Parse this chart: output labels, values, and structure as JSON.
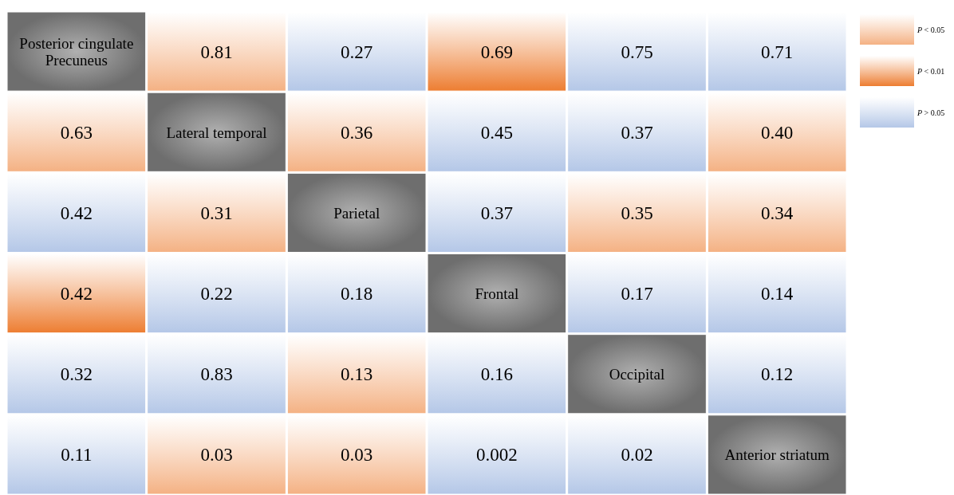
{
  "chart_data": {
    "type": "heatmap",
    "categories": [
      null,
      null,
      null,
      null,
      null,
      null
    ],
    "y_categories": [
      null,
      null,
      null,
      null,
      null,
      null
    ],
    "cells": [
      [
        null,
        0.81,
        0.27,
        0.69,
        0.75,
        0.71
      ],
      [
        0.63,
        null,
        0.36,
        0.45,
        0.37,
        0.4
      ],
      [
        0.42,
        0.31,
        null,
        0.37,
        0.35,
        0.34
      ],
      [
        0.42,
        0.22,
        0.18,
        null,
        0.17,
        0.14
      ],
      [
        0.32,
        0.83,
        0.13,
        0.16,
        null,
        0.12
      ],
      [
        0.11,
        0.03,
        0.03,
        0.002,
        0.02,
        null
      ]
    ],
    "cell_labels": [
      [
        "Posterior cingulate Precuneus",
        "0.81",
        "0.27",
        "0.69",
        "0.75",
        "0.71"
      ],
      [
        "0.63",
        "Lateral temporal",
        "0.36",
        "0.45",
        "0.37",
        "0.40"
      ],
      [
        "0.42",
        "0.31",
        "Parietal",
        "0.37",
        "0.35",
        "0.34"
      ],
      [
        "0.42",
        "0.22",
        "0.18",
        "Frontal",
        "0.17",
        "0.14"
      ],
      [
        "0.32",
        "0.83",
        "0.13",
        "0.16",
        "Occipital",
        "0.12"
      ],
      [
        "0.11",
        "0.03",
        "0.03",
        "0.002",
        "0.02",
        "Anterior striatum"
      ]
    ],
    "colors": [
      [
        "#7f7f7f",
        "#f4b183",
        "#b4c7e7",
        "#ed7d31",
        "#b4c7e7",
        "#b4c7e7"
      ],
      [
        "#f4b183",
        "#7f7f7f",
        "#f4b183",
        "#b4c7e7",
        "#b4c7e7",
        "#f4b183"
      ],
      [
        "#b4c7e7",
        "#f4b183",
        "#7f7f7f",
        "#b4c7e7",
        "#f4b183",
        "#f4b183"
      ],
      [
        "#ed7d31",
        "#b4c7e7",
        "#b4c7e7",
        "#7f7f7f",
        "#b4c7e7",
        "#b4c7e7"
      ],
      [
        "#b4c7e7",
        "#b4c7e7",
        "#f4b183",
        "#b4c7e7",
        "#7f7f7f",
        "#b4c7e7"
      ],
      [
        "#b4c7e7",
        "#f4b183",
        "#f4b183",
        "#b4c7e7",
        "#b4c7e7",
        "#7f7f7f"
      ]
    ],
    "annotations": [
      "P < 0.05",
      "P < 0.01",
      "P > 0.05"
    ]
  }
}
